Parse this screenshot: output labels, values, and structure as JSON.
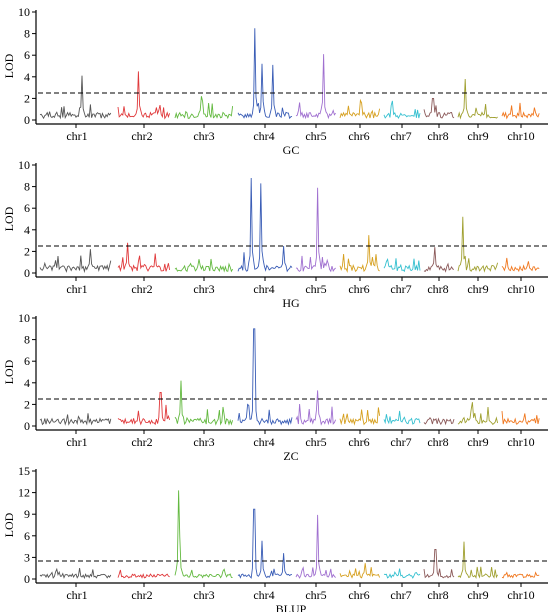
{
  "chart_data": [
    {
      "type": "line",
      "name": "GC",
      "ylabel": "LOD",
      "ylim": [
        0,
        10
      ],
      "yticks": [
        0,
        2,
        4,
        6,
        8,
        10
      ],
      "threshold": 2.5,
      "chromosomes": [
        "chr1",
        "chr2",
        "chr3",
        "chr4",
        "chr5",
        "chr6",
        "chr7",
        "chr8",
        "chr9",
        "chr10"
      ],
      "peaks": [
        {
          "chr": 1,
          "pos": 0.58,
          "lod": 4.1
        },
        {
          "chr": 2,
          "pos": 0.4,
          "lod": 4.5
        },
        {
          "chr": 3,
          "pos": 0.45,
          "lod": 2.2
        },
        {
          "chr": 4,
          "pos": 0.32,
          "lod": 8.5
        },
        {
          "chr": 4,
          "pos": 0.45,
          "lod": 5.2
        },
        {
          "chr": 4,
          "pos": 0.65,
          "lod": 5.1
        },
        {
          "chr": 5,
          "pos": 0.68,
          "lod": 6.1
        },
        {
          "chr": 8,
          "pos": 0.3,
          "lod": 2.0
        },
        {
          "chr": 9,
          "pos": 0.18,
          "lod": 3.8
        }
      ]
    },
    {
      "type": "line",
      "name": "HG",
      "ylabel": "LOD",
      "ylim": [
        0,
        10
      ],
      "yticks": [
        0,
        2,
        4,
        6,
        8,
        10
      ],
      "threshold": 2.5,
      "chromosomes": [
        "chr1",
        "chr2",
        "chr3",
        "chr4",
        "chr5",
        "chr6",
        "chr7",
        "chr8",
        "chr9",
        "chr10"
      ],
      "peaks": [
        {
          "chr": 1,
          "pos": 0.7,
          "lod": 2.2
        },
        {
          "chr": 2,
          "pos": 0.18,
          "lod": 2.8
        },
        {
          "chr": 4,
          "pos": 0.25,
          "lod": 8.8
        },
        {
          "chr": 4,
          "pos": 0.43,
          "lod": 8.3
        },
        {
          "chr": 4,
          "pos": 0.85,
          "lod": 2.5
        },
        {
          "chr": 5,
          "pos": 0.55,
          "lod": 7.9
        },
        {
          "chr": 6,
          "pos": 0.72,
          "lod": 3.5
        },
        {
          "chr": 8,
          "pos": 0.35,
          "lod": 2.4
        },
        {
          "chr": 9,
          "pos": 0.12,
          "lod": 5.2
        }
      ]
    },
    {
      "type": "line",
      "name": "ZC",
      "ylabel": "LOD",
      "ylim": [
        0,
        10
      ],
      "yticks": [
        0,
        2,
        4,
        6,
        8,
        10
      ],
      "threshold": 2.5,
      "chromosomes": [
        "chr1",
        "chr2",
        "chr3",
        "chr4",
        "chr5",
        "chr6",
        "chr7",
        "chr8",
        "chr9",
        "chr10"
      ],
      "peaks": [
        {
          "chr": 2,
          "pos": 0.82,
          "lod": 3.1
        },
        {
          "chr": 3,
          "pos": 0.1,
          "lod": 4.2
        },
        {
          "chr": 4,
          "pos": 0.18,
          "lod": 2.0
        },
        {
          "chr": 4,
          "pos": 0.3,
          "lod": 9.0
        },
        {
          "chr": 5,
          "pos": 0.55,
          "lod": 3.3
        },
        {
          "chr": 9,
          "pos": 0.35,
          "lod": 2.2
        }
      ]
    },
    {
      "type": "line",
      "name": "BLUP",
      "ylabel": "LOD",
      "ylim": [
        0,
        15
      ],
      "yticks": [
        0,
        3,
        6,
        9,
        12,
        15
      ],
      "threshold": 2.5,
      "chromosomes": [
        "chr1",
        "chr2",
        "chr3",
        "chr4",
        "chr5",
        "chr6",
        "chr7",
        "chr8",
        "chr9",
        "chr10"
      ],
      "peaks": [
        {
          "chr": 3,
          "pos": 0.06,
          "lod": 12.3
        },
        {
          "chr": 3,
          "pos": 0.09,
          "lod": 5.8
        },
        {
          "chr": 4,
          "pos": 0.3,
          "lod": 9.7
        },
        {
          "chr": 4,
          "pos": 0.45,
          "lod": 5.3
        },
        {
          "chr": 4,
          "pos": 0.85,
          "lod": 3.6
        },
        {
          "chr": 5,
          "pos": 0.55,
          "lod": 8.9
        },
        {
          "chr": 6,
          "pos": 0.62,
          "lod": 2.2
        },
        {
          "chr": 8,
          "pos": 0.38,
          "lod": 4.1
        },
        {
          "chr": 9,
          "pos": 0.15,
          "lod": 5.2
        }
      ]
    }
  ],
  "colors": [
    "#555555",
    "#e0393b",
    "#63b940",
    "#3a5db6",
    "#a070d0",
    "#d6a020",
    "#36c0d0",
    "#8b5a5a",
    "#a0a030",
    "#f07820"
  ]
}
